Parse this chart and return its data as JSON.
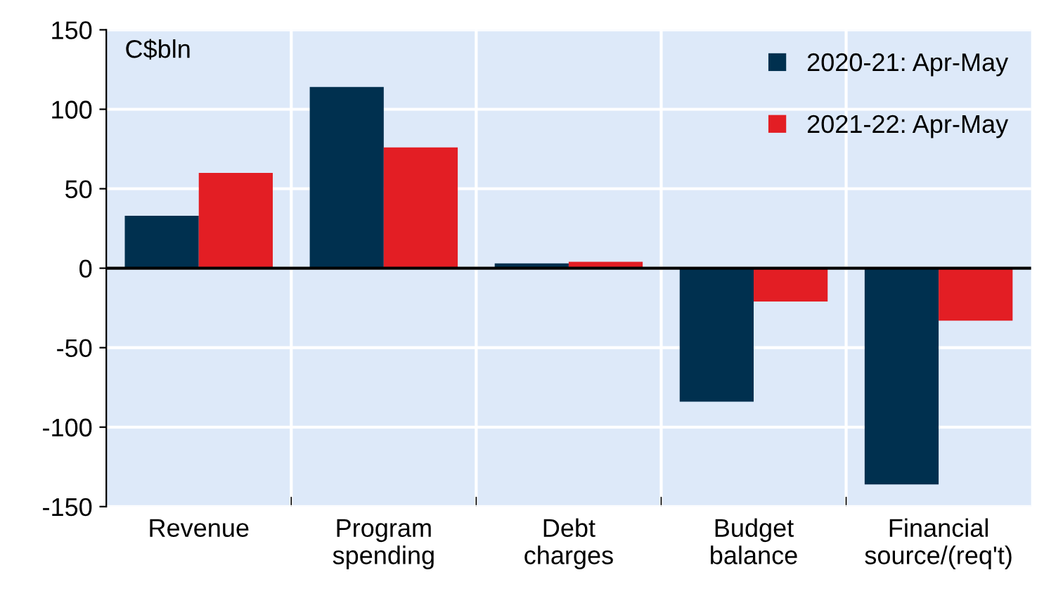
{
  "chart_data": {
    "type": "bar",
    "ylabel": "C$bln",
    "categories": [
      "Revenue",
      "Program\nspending",
      "Debt\ncharges",
      "Budget\nbalance",
      "Financial\nsource/(req't)"
    ],
    "series": [
      {
        "name": "2020-21: Apr-May",
        "color": "#00304f",
        "values": [
          33,
          114,
          3,
          -84,
          -136
        ]
      },
      {
        "name": "2021-22: Apr-May",
        "color": "#e31e24",
        "values": [
          60,
          76,
          4,
          -21,
          -33
        ]
      }
    ],
    "ylim": [
      -150,
      150
    ],
    "yticks": [
      -150,
      -100,
      -50,
      0,
      50,
      100,
      150
    ],
    "grid": true,
    "legend": "top right"
  }
}
